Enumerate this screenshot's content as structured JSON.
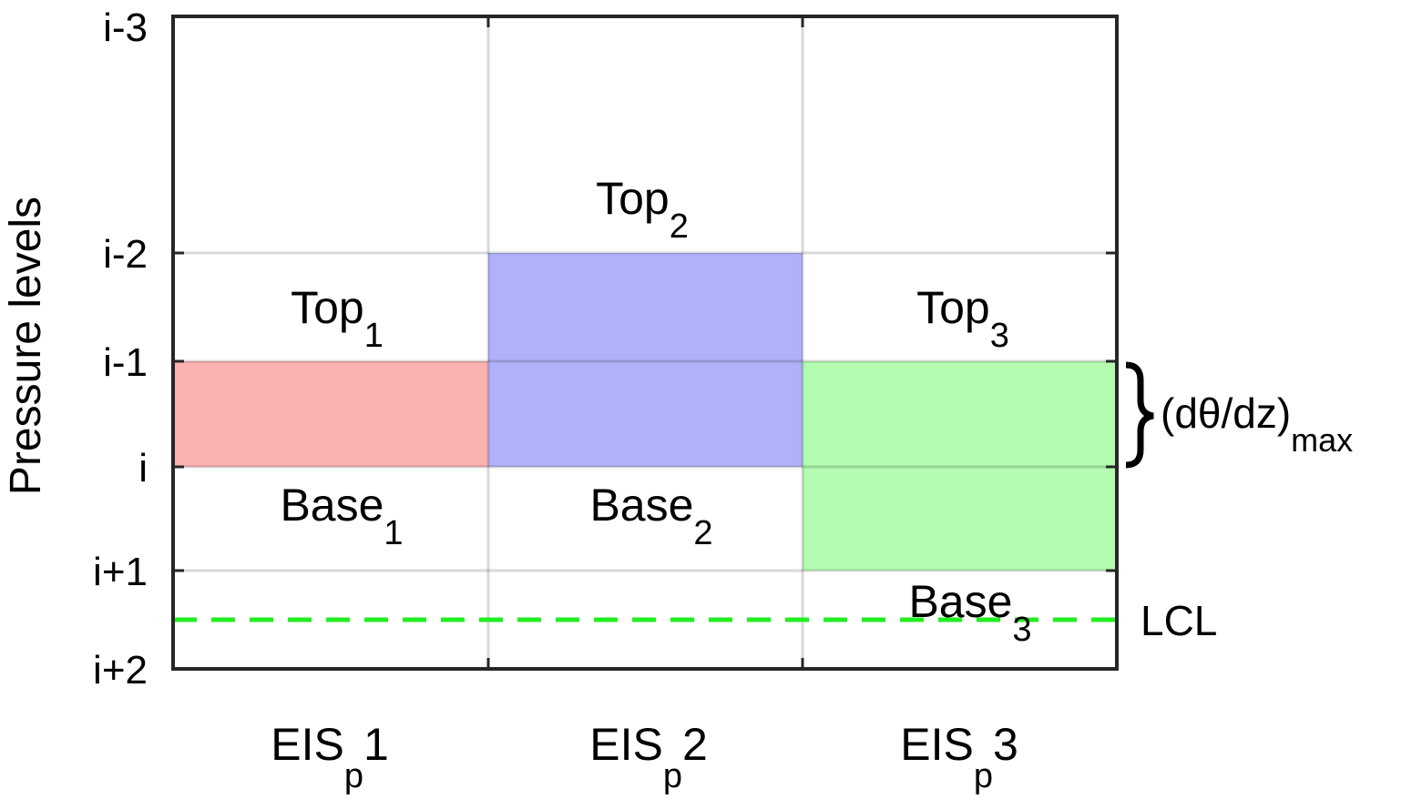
{
  "y_axis": {
    "label": "Pressure levels",
    "ticks": [
      "i-3",
      "i-2",
      "i-1",
      "i",
      "i+1",
      "i+2"
    ]
  },
  "columns": [
    {
      "label": "EIS",
      "label_sub": "p",
      "label_num": "1",
      "top": {
        "text": "Top",
        "sub": "1"
      },
      "base": {
        "text": "Base",
        "sub": "1"
      }
    },
    {
      "label": "EIS",
      "label_sub": "p",
      "label_num": "2",
      "top": {
        "text": "Top",
        "sub": "2"
      },
      "base": {
        "text": "Base",
        "sub": "2"
      }
    },
    {
      "label": "EIS",
      "label_sub": "p",
      "label_num": "3",
      "top": {
        "text": "Top",
        "sub": "3"
      },
      "base": {
        "text": "Base",
        "sub": "3"
      }
    }
  ],
  "annotation": {
    "text": "(dθ/dz)",
    "sub": "max"
  },
  "lcl": "LCL"
}
